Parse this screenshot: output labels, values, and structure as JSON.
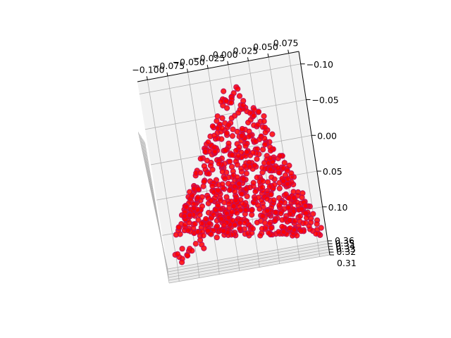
{
  "chart_data": {
    "type": "scatter",
    "projection": "3d",
    "title": "",
    "xlabel": "",
    "ylabel": "",
    "zlabel": "",
    "grid": true,
    "marker_color": "#ff0000",
    "marker_edge_color": "#c0105a",
    "pane_color": "#f2f2f2",
    "grid_color": "#b0b0b0",
    "x_ticks": [
      "−0.100",
      "−0.075",
      "−0.050",
      "−0.025",
      "0.000",
      "0.025",
      "0.050",
      "0.075"
    ],
    "y_ticks": [
      "0.10",
      "0.05",
      "0.00",
      "−0.05",
      "−0.10"
    ],
    "z_ticks": [
      "0.31",
      "0.32",
      "0.33",
      "0.34",
      "0.35",
      "0.36"
    ],
    "xlim": [
      -0.11,
      0.085
    ],
    "ylim": [
      -0.125,
      0.11
    ],
    "zlim": [
      0.31,
      0.365
    ],
    "point_count": 760,
    "distribution_note_hidden": false
  }
}
